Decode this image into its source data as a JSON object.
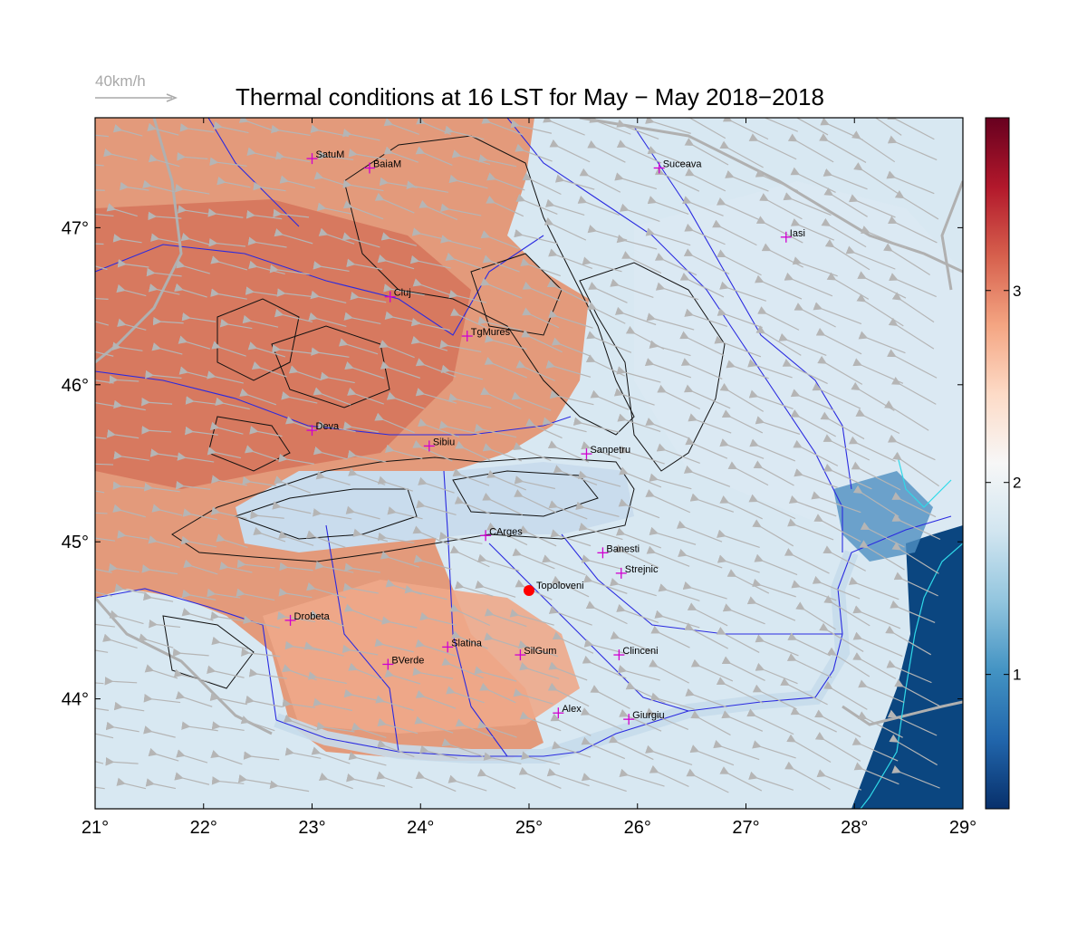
{
  "title": "Thermal conditions at 16 LST for May − May  2018−2018",
  "wind_legend": {
    "label": "40km/h",
    "color": "#a9a9a9"
  },
  "axes": {
    "lon_range": [
      21,
      29
    ],
    "lat_range": [
      43.3,
      47.7
    ],
    "x_ticks": [
      "21°",
      "22°",
      "23°",
      "24°",
      "25°",
      "26°",
      "27°",
      "28°",
      "29°"
    ],
    "y_ticks": [
      "44°",
      "45°",
      "46°",
      "47°"
    ]
  },
  "colorbar": {
    "range": [
      0.3,
      3.9
    ],
    "ticks": [
      "1",
      "2",
      "3"
    ],
    "tick_values": [
      1,
      2,
      3
    ],
    "colors": [
      "#08306b",
      "#2166ac",
      "#4393c3",
      "#92c5de",
      "#d1e5f0",
      "#f7f7f7",
      "#fddbc7",
      "#f4a582",
      "#d6604d",
      "#b2182b",
      "#67001f"
    ]
  },
  "stations": [
    {
      "name": "SatuM",
      "lon": 23.0,
      "lat": 47.44
    },
    {
      "name": "BaiaM",
      "lon": 23.53,
      "lat": 47.38
    },
    {
      "name": "Suceava",
      "lon": 26.2,
      "lat": 47.38
    },
    {
      "name": "Iasi",
      "lon": 27.37,
      "lat": 46.94
    },
    {
      "name": "Cluj",
      "lon": 23.72,
      "lat": 46.56
    },
    {
      "name": "TgMures",
      "lon": 24.43,
      "lat": 46.31
    },
    {
      "name": "Deva",
      "lon": 23.0,
      "lat": 45.71
    },
    {
      "name": "Sibiu",
      "lon": 24.08,
      "lat": 45.61
    },
    {
      "name": "Sanpetru",
      "lon": 25.53,
      "lat": 45.56
    },
    {
      "name": "CArges",
      "lon": 24.6,
      "lat": 45.04
    },
    {
      "name": "Banesti",
      "lon": 25.68,
      "lat": 44.93
    },
    {
      "name": "Strejnic",
      "lon": 25.85,
      "lat": 44.8
    },
    {
      "name": "Drobeta",
      "lon": 22.8,
      "lat": 44.5
    },
    {
      "name": "Slatina",
      "lon": 24.25,
      "lat": 44.33
    },
    {
      "name": "SilGum",
      "lon": 24.92,
      "lat": 44.28
    },
    {
      "name": "Clinceni",
      "lon": 25.83,
      "lat": 44.28
    },
    {
      "name": "BVerde",
      "lon": 23.7,
      "lat": 44.22
    },
    {
      "name": "Alex",
      "lon": 25.27,
      "lat": 43.91
    },
    {
      "name": "Giurgiu",
      "lon": 25.92,
      "lat": 43.87
    }
  ],
  "highlight_site": {
    "name": "Topoloveni",
    "lon": 25.0,
    "lat": 44.69,
    "color": "#ff0000"
  },
  "station_marker_color": "#d000d0"
}
